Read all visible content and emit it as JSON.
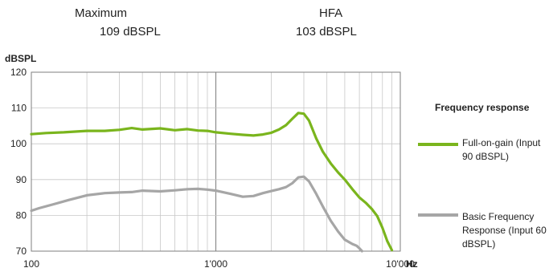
{
  "header": {
    "col1_title": "Maximum",
    "col1_value": "109  dBSPL",
    "col2_title": "HFA",
    "col2_value": "103  dBSPL"
  },
  "chart_data": {
    "type": "line",
    "title": "",
    "xlabel": "Hz",
    "ylabel": "dBSPL",
    "xscale": "log",
    "xlim": [
      100,
      10000
    ],
    "ylim": [
      70,
      120
    ],
    "y_ticks": [
      "70",
      "80",
      "90",
      "100",
      "110",
      "120"
    ],
    "x_ticks": [
      {
        "value": 100,
        "label": "100"
      },
      {
        "value": 1000,
        "label": "1'000"
      },
      {
        "value": 10000,
        "label": "10'000"
      }
    ],
    "grid": true,
    "legend_title": "Frequency response",
    "legend_position": "right",
    "series": [
      {
        "name": "Full-on-gain (Input 90 dBSPL)",
        "color": "#7ab51d",
        "x": [
          100,
          120,
          150,
          200,
          250,
          300,
          350,
          400,
          500,
          600,
          700,
          800,
          900,
          1000,
          1200,
          1400,
          1600,
          1800,
          2000,
          2200,
          2400,
          2600,
          2800,
          3000,
          3200,
          3500,
          3800,
          4200,
          4600,
          5000,
          5500,
          6000,
          6500,
          7000,
          7500,
          8000,
          8500,
          9000
        ],
        "values": [
          102.7,
          103.0,
          103.2,
          103.6,
          103.6,
          103.9,
          104.4,
          104.0,
          104.3,
          103.8,
          104.1,
          103.7,
          103.6,
          103.2,
          102.8,
          102.5,
          102.3,
          102.6,
          103.1,
          104.0,
          105.2,
          107.0,
          108.6,
          108.4,
          106.5,
          101.5,
          97.8,
          94.5,
          92.0,
          90.0,
          87.3,
          85.0,
          83.5,
          81.8,
          79.8,
          76.5,
          72.8,
          70.3
        ]
      },
      {
        "name": "Basic Frequency Response (Input 60 dBSPL)",
        "color": "#a6a6a6",
        "x": [
          100,
          110,
          130,
          160,
          200,
          250,
          300,
          350,
          400,
          500,
          600,
          700,
          800,
          900,
          1000,
          1200,
          1400,
          1600,
          1800,
          2000,
          2200,
          2400,
          2600,
          2800,
          3000,
          3200,
          3500,
          3800,
          4200,
          4600,
          5000,
          5500,
          5800,
          6000,
          6200
        ],
        "values": [
          81.3,
          82.0,
          83.0,
          84.3,
          85.6,
          86.2,
          86.4,
          86.5,
          86.9,
          86.7,
          87.0,
          87.3,
          87.4,
          87.2,
          86.9,
          86.0,
          85.2,
          85.4,
          86.2,
          86.8,
          87.3,
          87.9,
          89.0,
          90.6,
          90.8,
          89.5,
          86.0,
          82.5,
          78.5,
          75.5,
          73.2,
          72.0,
          71.5,
          70.8,
          70.0
        ]
      }
    ]
  }
}
